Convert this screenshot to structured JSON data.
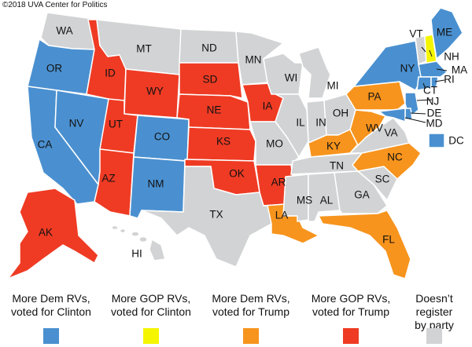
{
  "credit": "©2018 UVA Center for Politics",
  "colors": {
    "dem_clinton": "#4a90d0",
    "gop_clinton": "#f5f500",
    "dem_trump": "#f7941d",
    "gop_trump": "#ef3b24",
    "none": "#d1d3d4"
  },
  "states": {
    "WA": {
      "label": "WA",
      "category": "none"
    },
    "OR": {
      "label": "OR",
      "category": "dem_clinton"
    },
    "CA": {
      "label": "CA",
      "category": "dem_clinton"
    },
    "NV": {
      "label": "NV",
      "category": "dem_clinton"
    },
    "ID": {
      "label": "ID",
      "category": "gop_trump"
    },
    "MT": {
      "label": "MT",
      "category": "none"
    },
    "WY": {
      "label": "WY",
      "category": "gop_trump"
    },
    "UT": {
      "label": "UT",
      "category": "gop_trump"
    },
    "AZ": {
      "label": "AZ",
      "category": "gop_trump"
    },
    "CO": {
      "label": "CO",
      "category": "dem_clinton"
    },
    "NM": {
      "label": "NM",
      "category": "dem_clinton"
    },
    "ND": {
      "label": "ND",
      "category": "none"
    },
    "SD": {
      "label": "SD",
      "category": "gop_trump"
    },
    "NE": {
      "label": "NE",
      "category": "gop_trump"
    },
    "KS": {
      "label": "KS",
      "category": "gop_trump"
    },
    "OK": {
      "label": "OK",
      "category": "gop_trump"
    },
    "TX": {
      "label": "TX",
      "category": "none"
    },
    "MN": {
      "label": "MN",
      "category": "none"
    },
    "IA": {
      "label": "IA",
      "category": "gop_trump"
    },
    "MO": {
      "label": "MO",
      "category": "none"
    },
    "AR": {
      "label": "AR",
      "category": "gop_trump"
    },
    "LA": {
      "label": "LA",
      "category": "dem_trump"
    },
    "WI": {
      "label": "WI",
      "category": "none"
    },
    "IL": {
      "label": "IL",
      "category": "none"
    },
    "MI": {
      "label": "MI",
      "category": "none"
    },
    "IN": {
      "label": "IN",
      "category": "none"
    },
    "OH": {
      "label": "OH",
      "category": "none"
    },
    "KY": {
      "label": "KY",
      "category": "dem_trump"
    },
    "TN": {
      "label": "TN",
      "category": "none"
    },
    "MS": {
      "label": "MS",
      "category": "none"
    },
    "AL": {
      "label": "AL",
      "category": "none"
    },
    "GA": {
      "label": "GA",
      "category": "none"
    },
    "FL": {
      "label": "FL",
      "category": "dem_trump"
    },
    "SC": {
      "label": "SC",
      "category": "none"
    },
    "NC": {
      "label": "NC",
      "category": "dem_trump"
    },
    "VA": {
      "label": "VA",
      "category": "none"
    },
    "WV": {
      "label": "WV",
      "category": "dem_trump"
    },
    "PA": {
      "label": "PA",
      "category": "dem_trump"
    },
    "NY": {
      "label": "NY",
      "category": "dem_clinton"
    },
    "VT": {
      "label": "VT",
      "category": "none"
    },
    "NH": {
      "label": "NH",
      "category": "gop_clinton"
    },
    "ME": {
      "label": "ME",
      "category": "dem_clinton"
    },
    "MA": {
      "label": "MA",
      "category": "dem_clinton"
    },
    "RI": {
      "label": "RI",
      "category": "dem_clinton"
    },
    "CT": {
      "label": "CT",
      "category": "dem_clinton"
    },
    "NJ": {
      "label": "NJ",
      "category": "dem_clinton"
    },
    "DE": {
      "label": "DE",
      "category": "dem_clinton"
    },
    "MD": {
      "label": "MD",
      "category": "dem_clinton"
    },
    "DC": {
      "label": "DC",
      "category": "dem_clinton"
    },
    "AK": {
      "label": "AK",
      "category": "gop_trump"
    },
    "HI": {
      "label": "HI",
      "category": "none"
    }
  },
  "legend": [
    {
      "key": "dem_clinton",
      "label": "More Dem RVs,\nvoted for Clinton"
    },
    {
      "key": "gop_clinton",
      "label": "More GOP RVs,\nvoted for Clinton"
    },
    {
      "key": "dem_trump",
      "label": "More Dem RVs,\nvoted for Trump"
    },
    {
      "key": "gop_trump",
      "label": "More GOP RVs,\nvoted for Trump"
    },
    {
      "key": "none",
      "label": "Doesn’t\nregister\nby party"
    }
  ]
}
